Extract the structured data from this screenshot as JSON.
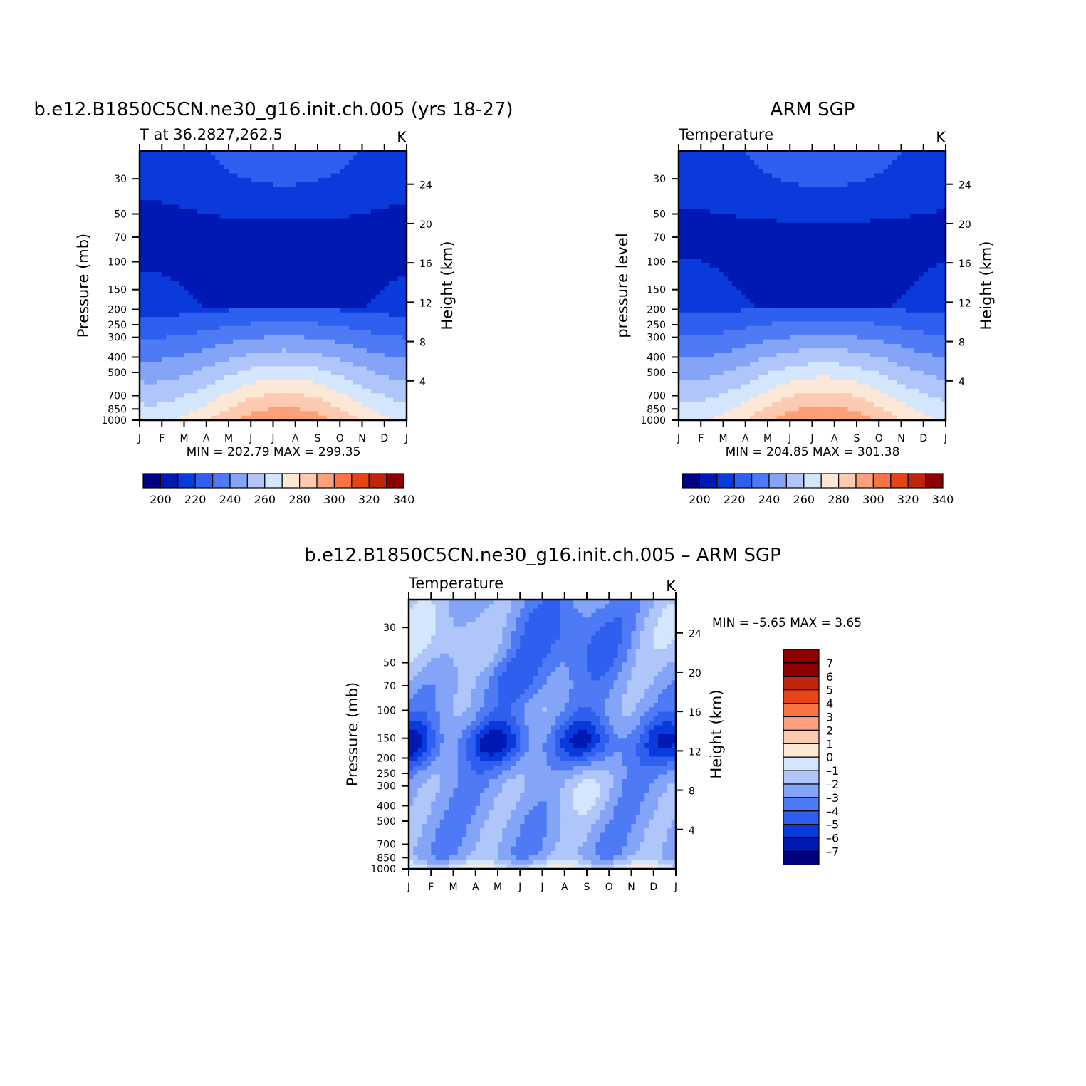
{
  "palette": [
    "#000080",
    "#0019b3",
    "#0a3adc",
    "#2f5fee",
    "#4e7bf5",
    "#84a4f7",
    "#b0c6fa",
    "#d4e6fb",
    "#fde8d8",
    "#fccab0",
    "#fba07a",
    "#fa7346",
    "#e84317",
    "#c1240a",
    "#8c0000"
  ],
  "chart_data": [
    {
      "type": "contour",
      "title": "b.e12.B1850C5CN.ne30_g16.init.ch.005 (yrs 18-27)",
      "subtitle": "T at 36.2827,262.5",
      "units": "K",
      "x": [
        "J",
        "F",
        "M",
        "A",
        "M",
        "J",
        "J",
        "A",
        "S",
        "O",
        "N",
        "D",
        "J"
      ],
      "ylabel": "Pressure (mb)",
      "y2label": "Height (km)",
      "yticks": [
        "30",
        "50",
        "70",
        "100",
        "150",
        "200",
        "250",
        "300",
        "400",
        "500",
        "700",
        "850",
        "1000"
      ],
      "y2ticks": [
        "24",
        "20",
        "16",
        "12",
        "8",
        "4"
      ],
      "ylim": [
        20,
        1000
      ],
      "scale": "log-pressure",
      "stats": "MIN = 202.79 MAX = 299.35",
      "min": 202.79,
      "max": 299.35,
      "colorbar": {
        "orientation": "horizontal",
        "labels": [
          "200",
          "220",
          "240",
          "260",
          "280",
          "300",
          "320",
          "340"
        ]
      }
    },
    {
      "type": "contour",
      "title": "ARM SGP",
      "subtitle": "Temperature",
      "units": "K",
      "x": [
        "J",
        "F",
        "M",
        "A",
        "M",
        "J",
        "J",
        "A",
        "S",
        "O",
        "N",
        "D",
        "J"
      ],
      "ylabel": "pressure level",
      "y2label": "Height (km)",
      "yticks": [
        "30",
        "50",
        "70",
        "100",
        "150",
        "200",
        "250",
        "300",
        "400",
        "500",
        "700",
        "850",
        "1000"
      ],
      "y2ticks": [
        "24",
        "20",
        "16",
        "12",
        "8",
        "4"
      ],
      "ylim": [
        20,
        1000
      ],
      "scale": "log-pressure",
      "stats": "MIN = 204.85 MAX = 301.38",
      "min": 204.85,
      "max": 301.38,
      "colorbar": {
        "orientation": "horizontal",
        "labels": [
          "200",
          "220",
          "240",
          "260",
          "280",
          "300",
          "320",
          "340"
        ]
      }
    },
    {
      "type": "contour",
      "title": "b.e12.B1850C5CN.ne30_g16.init.ch.005 – ARM SGP",
      "subtitle": "Temperature",
      "units": "K",
      "x": [
        "J",
        "F",
        "M",
        "A",
        "M",
        "J",
        "J",
        "A",
        "S",
        "O",
        "N",
        "D",
        "J"
      ],
      "ylabel": "Pressure (mb)",
      "y2label": "Height (km)",
      "yticks": [
        "30",
        "50",
        "70",
        "100",
        "150",
        "200",
        "250",
        "300",
        "400",
        "500",
        "700",
        "850",
        "1000"
      ],
      "y2ticks": [
        "24",
        "20",
        "16",
        "12",
        "8",
        "4"
      ],
      "ylim": [
        20,
        1000
      ],
      "scale": "log-pressure",
      "stats": "MIN = –5.65 MAX = 3.65",
      "min": -5.65,
      "max": 3.65,
      "colorbar": {
        "orientation": "vertical",
        "labels": [
          "7",
          "6",
          "5",
          "4",
          "3",
          "2",
          "1",
          "0",
          "–1",
          "–2",
          "–3",
          "–4",
          "–5",
          "–6",
          "–7"
        ]
      }
    }
  ]
}
